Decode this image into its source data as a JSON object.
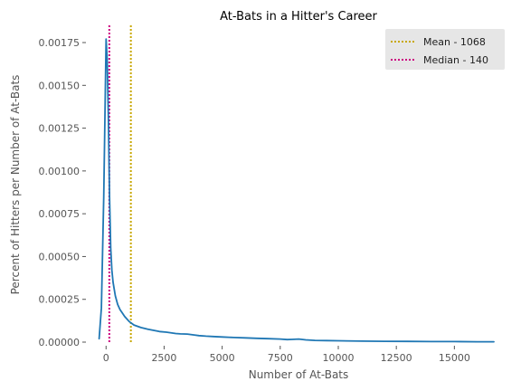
{
  "chart_data": {
    "type": "line",
    "title": "At-Bats in a Hitter's Career",
    "xlabel": "Number of At-Bats",
    "ylabel": "Percent of Hitters per Number of At-Bats",
    "xlim": [
      -750,
      16700
    ],
    "ylim": [
      0,
      0.00184
    ],
    "x_ticks": [
      0,
      2500,
      5000,
      7500,
      10000,
      12500,
      15000
    ],
    "x_tick_labels": [
      "0",
      "2500",
      "5000",
      "7500",
      "10000",
      "12500",
      "15000"
    ],
    "y_ticks": [
      0,
      0.00025,
      0.0005,
      0.00075,
      0.001,
      0.00125,
      0.0015,
      0.00175
    ],
    "y_tick_labels": [
      "0.00000",
      "0.00025",
      "0.00050",
      "0.00075",
      "0.00100",
      "0.00125",
      "0.00150",
      "0.00175"
    ],
    "grid": false,
    "legend_position": "top-right",
    "series": [
      {
        "color": "#1f77b4",
        "x": [
          -300,
          -200,
          -100,
          0,
          50,
          100,
          150,
          200,
          250,
          300,
          400,
          500,
          600,
          700,
          800,
          1000,
          1200,
          1500,
          1800,
          2000,
          2300,
          2600,
          3000,
          3200,
          3500,
          3800,
          4000,
          4300,
          4600,
          5000,
          5500,
          6000,
          6500,
          7000,
          7500,
          7800,
          8000,
          8300,
          8600,
          9000,
          9500,
          10000,
          11000,
          12000,
          13000,
          14000,
          15000,
          16000,
          16700
        ],
        "y": [
          2e-05,
          0.0002,
          0.00085,
          0.00177,
          0.00165,
          0.00132,
          0.00085,
          0.00055,
          0.00042,
          0.00035,
          0.00027,
          0.00022,
          0.00019,
          0.00017,
          0.00015,
          0.00012,
          0.0001,
          8.5e-05,
          7.5e-05,
          7e-05,
          6.2e-05,
          5.8e-05,
          5e-05,
          4.8e-05,
          4.7e-05,
          4.2e-05,
          3.8e-05,
          3.5e-05,
          3.3e-05,
          3e-05,
          2.7e-05,
          2.5e-05,
          2.2e-05,
          2e-05,
          1.8e-05,
          1.5e-05,
          1.6e-05,
          1.8e-05,
          1.3e-05,
          1e-05,
          9e-06,
          8e-06,
          6e-06,
          5e-06,
          4e-06,
          3e-06,
          3e-06,
          2e-06,
          2e-06
        ]
      }
    ],
    "reference_lines": [
      {
        "name": "Mean - 1068",
        "x": 1068,
        "color": "#c8a800",
        "style": "dotted"
      },
      {
        "name": "Median - 140",
        "x": 140,
        "color": "#cc0080",
        "style": "dotted"
      }
    ]
  }
}
